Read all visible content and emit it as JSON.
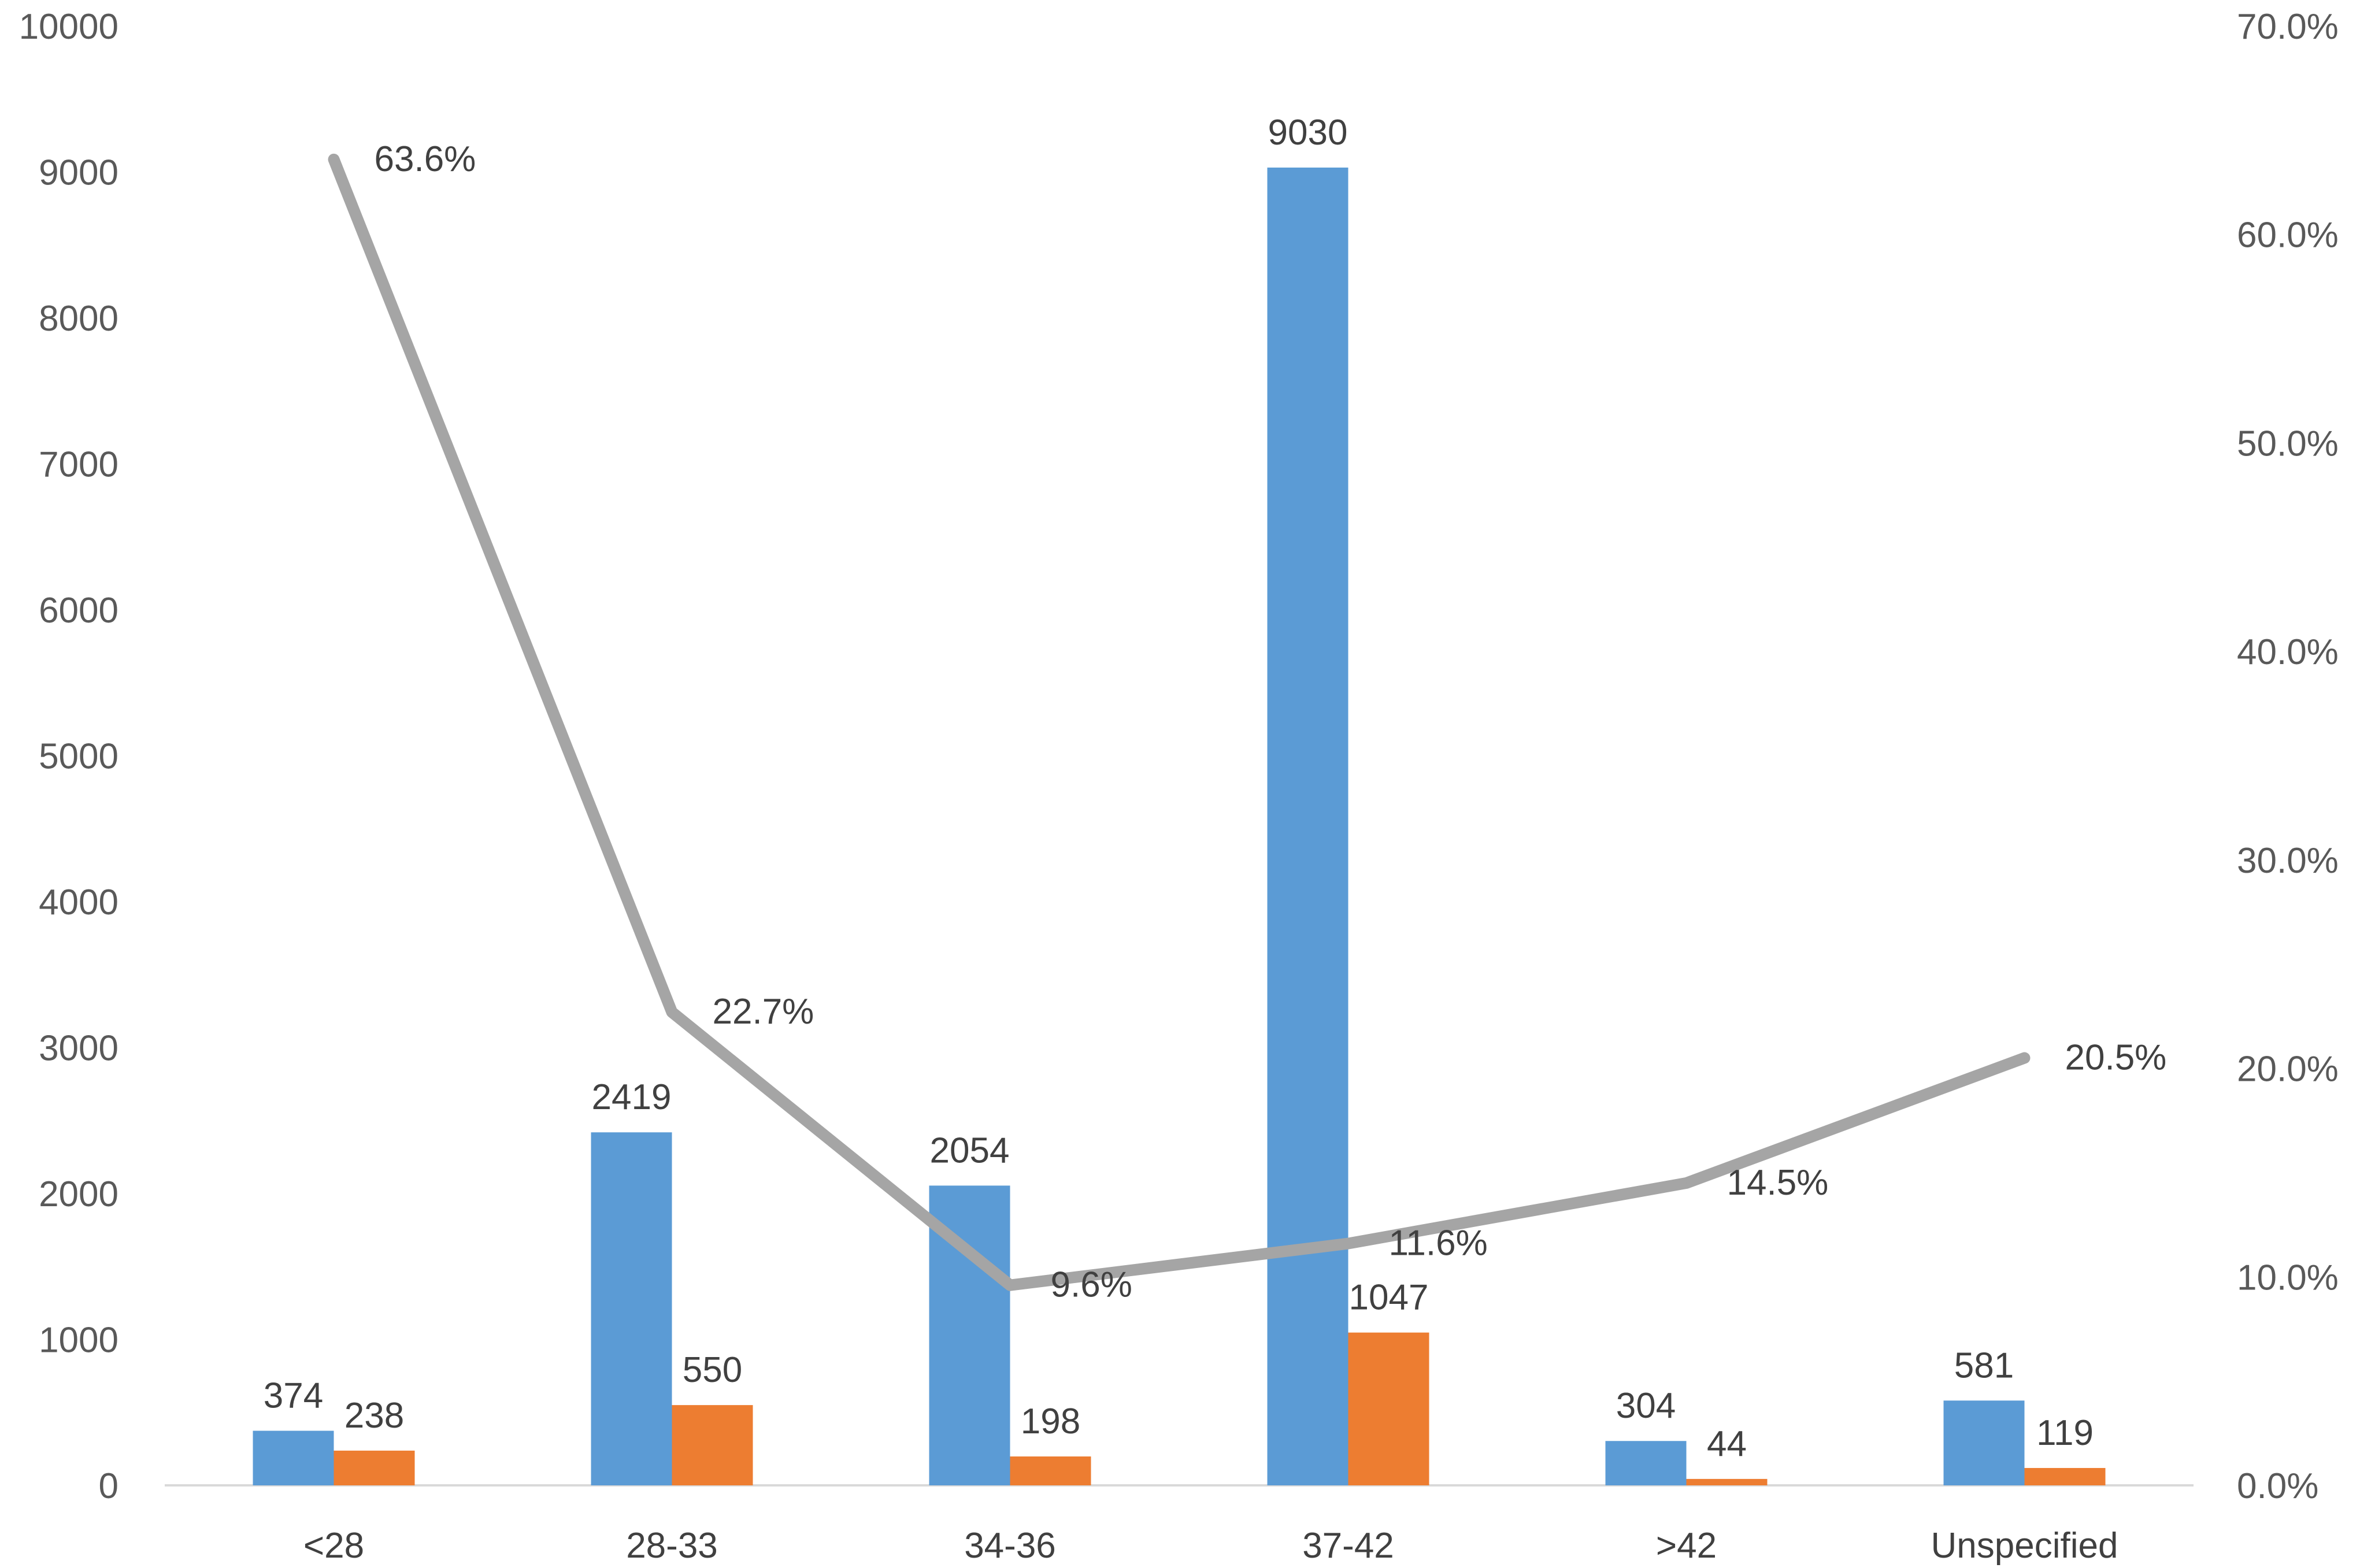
{
  "chart_data": {
    "type": "bar",
    "categories": [
      "<28",
      "28-33",
      "34-36",
      "37-42",
      ">42",
      "Unspecified"
    ],
    "series": [
      {
        "type": "bar",
        "axis": "left",
        "color": "#5B9BD5",
        "values": [
          374,
          2419,
          2054,
          9030,
          304,
          581
        ],
        "labels": [
          "374",
          "2419",
          "2054",
          "9030",
          "304",
          "581"
        ]
      },
      {
        "type": "bar",
        "axis": "left",
        "color": "#ED7D31",
        "values": [
          238,
          550,
          198,
          1047,
          44,
          119
        ],
        "labels": [
          "238",
          "550",
          "198",
          "1047",
          "44",
          "119"
        ]
      },
      {
        "type": "line",
        "axis": "right",
        "color": "#A5A5A5",
        "values": [
          63.6,
          22.7,
          9.6,
          11.6,
          14.5,
          20.5
        ],
        "labels": [
          "63.6%",
          "22.7%",
          "9.6%",
          "11.6%",
          "14.5%",
          "20.5%"
        ]
      }
    ],
    "y_left": {
      "min": 0,
      "max": 10000,
      "ticks": [
        "0",
        "1000",
        "2000",
        "3000",
        "4000",
        "5000",
        "6000",
        "7000",
        "8000",
        "9000",
        "10000"
      ]
    },
    "y_right": {
      "min": 0,
      "max": 70,
      "ticks": [
        "0.0%",
        "10.0%",
        "20.0%",
        "30.0%",
        "40.0%",
        "50.0%",
        "60.0%",
        "70.0%"
      ]
    },
    "title": "",
    "xlabel": "",
    "ylabel": "",
    "grid": false,
    "legend": "none"
  }
}
